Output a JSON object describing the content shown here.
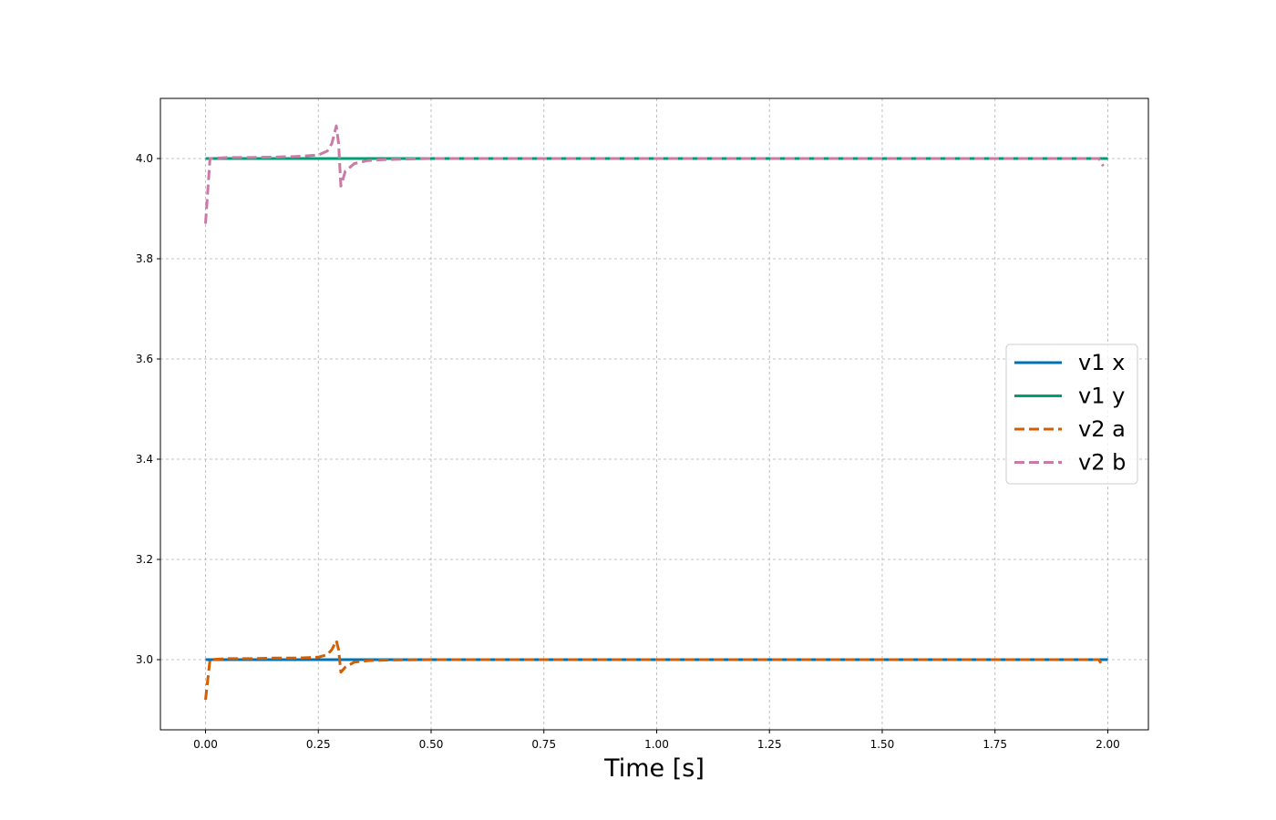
{
  "chart_data": {
    "type": "line",
    "title": "",
    "xlabel": "Time [s]",
    "ylabel": "",
    "xlim": [
      -0.1,
      2.09
    ],
    "ylim": [
      2.86,
      4.12
    ],
    "xticks": [
      0.0,
      0.25,
      0.5,
      0.75,
      1.0,
      1.25,
      1.5,
      1.75,
      2.0
    ],
    "xtick_labels": [
      "0.00",
      "0.25",
      "0.50",
      "0.75",
      "1.00",
      "1.25",
      "1.50",
      "1.75",
      "2.00"
    ],
    "yticks": [
      3.0,
      3.2,
      3.4,
      3.6,
      3.8,
      4.0
    ],
    "ytick_labels": [
      "3.0",
      "3.2",
      "3.4",
      "3.6",
      "3.8",
      "4.0"
    ],
    "grid": true,
    "legend_position": "center-right",
    "series": [
      {
        "name": "v1 x",
        "color": "#0072B2",
        "style": "solid",
        "x": [
          0.0,
          2.0
        ],
        "y": [
          3.0,
          3.0
        ]
      },
      {
        "name": "v1 y",
        "color": "#009E73",
        "style": "solid",
        "x": [
          0.0,
          2.0
        ],
        "y": [
          4.0,
          4.0
        ]
      },
      {
        "name": "v2 a",
        "color": "#D55E00",
        "style": "dashed",
        "x": [
          0.0,
          0.01,
          0.05,
          0.1,
          0.15,
          0.2,
          0.25,
          0.27,
          0.28,
          0.29,
          0.295,
          0.3,
          0.31,
          0.33,
          0.36,
          0.4,
          0.5,
          1.0,
          1.5,
          1.98,
          1.99
        ],
        "y": [
          2.92,
          3.0,
          3.002,
          3.002,
          3.003,
          3.003,
          3.005,
          3.01,
          3.02,
          3.038,
          3.02,
          2.975,
          2.985,
          2.995,
          2.998,
          2.999,
          3.0,
          3.0,
          3.0,
          3.0,
          2.985
        ]
      },
      {
        "name": "v2 b",
        "color": "#CC79A7",
        "style": "dashed",
        "x": [
          0.0,
          0.01,
          0.05,
          0.1,
          0.15,
          0.2,
          0.25,
          0.27,
          0.28,
          0.29,
          0.295,
          0.3,
          0.31,
          0.33,
          0.36,
          0.4,
          0.5,
          1.0,
          1.5,
          1.98,
          1.99
        ],
        "y": [
          3.87,
          4.0,
          4.002,
          4.002,
          4.003,
          4.004,
          4.007,
          4.015,
          4.03,
          4.065,
          4.03,
          3.945,
          3.975,
          3.99,
          3.996,
          3.998,
          4.0,
          4.0,
          4.0,
          4.0,
          3.985
        ]
      }
    ]
  }
}
